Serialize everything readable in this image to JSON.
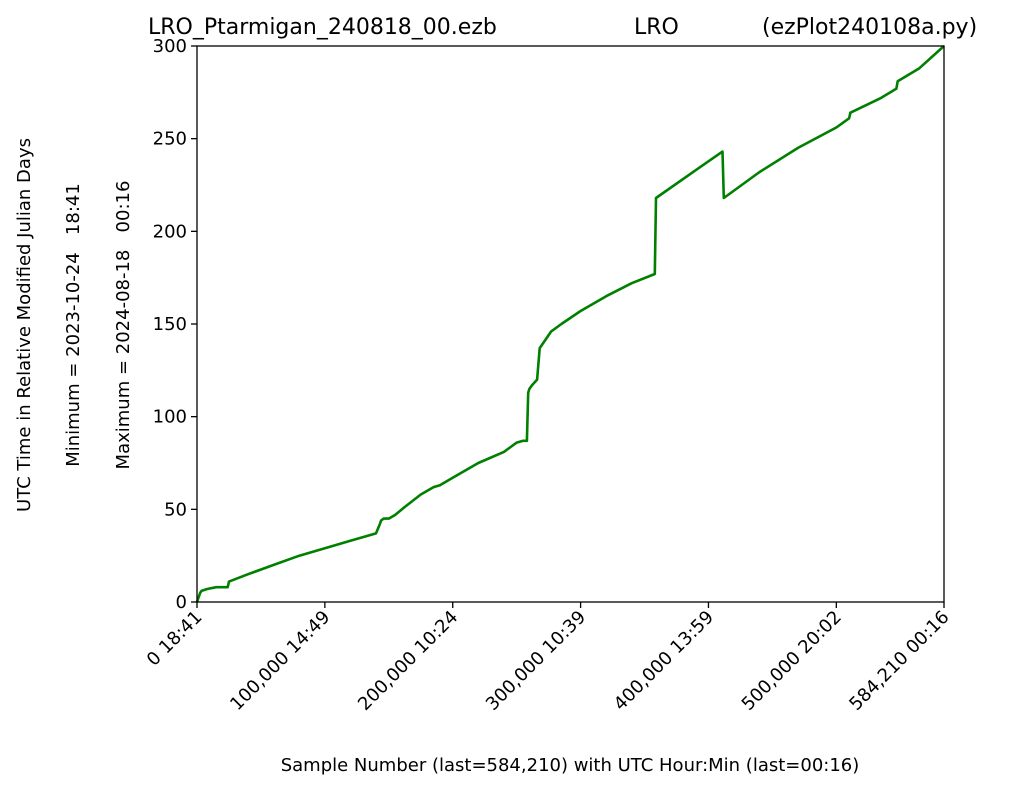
{
  "chart_data": {
    "type": "line",
    "title_left": "LRO_Ptarmigan_240818_00.ezb",
    "title_center": "LRO",
    "title_right": "(ezPlot240108a.py)",
    "xlabel": "Sample Number (last=584,210) with UTC Hour:Min (last=00:16)",
    "ylabel": "UTC Time in Relative Modified Julian Days",
    "ylabel_min": "Minimum = 2023-10-24   18:41",
    "ylabel_max": "Maximum = 2024-08-18   00:16",
    "xlim": [
      0,
      584210
    ],
    "ylim": [
      0,
      300
    ],
    "x_ticks": [
      0,
      100000,
      200000,
      300000,
      400000,
      500000,
      584210
    ],
    "x_tick_labels": [
      "0  18:41",
      "100,000  14:49",
      "200,000  10:24",
      "300,000  10:39",
      "400,000  13:59",
      "500,000  20:02",
      "584,210  00:16"
    ],
    "y_ticks": [
      0,
      50,
      100,
      150,
      200,
      250,
      300
    ],
    "y_tick_labels": [
      "0",
      "50",
      "100",
      "150",
      "200",
      "250",
      "300"
    ],
    "grid": false,
    "line_color": "#008000",
    "series": [
      {
        "x": [
          0,
          2500,
          3500,
          8000,
          15000,
          22000,
          24000,
          25000,
          40000,
          60000,
          80000,
          100000,
          120000,
          140000,
          143000,
          144000,
          146000,
          150000,
          155000,
          162000,
          175000,
          185000,
          190000,
          200000,
          220000,
          240000,
          250000,
          255000,
          258000,
          259000,
          260000,
          262000,
          266000,
          268000,
          274000,
          275000,
          277000,
          285000,
          300000,
          320000,
          340000,
          358000,
          359000,
          390000,
          411000,
          412000,
          440000,
          470000,
          500000,
          510000,
          511000,
          535000,
          547000,
          548000,
          565000,
          584210
        ],
        "y": [
          0,
          5,
          6,
          7,
          8,
          8,
          8,
          11,
          15,
          20,
          25,
          29,
          33,
          37,
          42,
          44,
          45,
          45,
          47,
          51,
          58,
          62,
          63,
          67,
          75,
          81,
          86,
          87,
          87,
          113,
          115,
          117,
          120,
          137,
          143,
          144,
          146,
          150,
          157,
          165,
          172,
          177,
          218,
          233,
          243,
          218,
          232,
          245,
          256,
          261,
          264,
          272,
          277,
          281,
          288,
          300
        ]
      }
    ]
  }
}
